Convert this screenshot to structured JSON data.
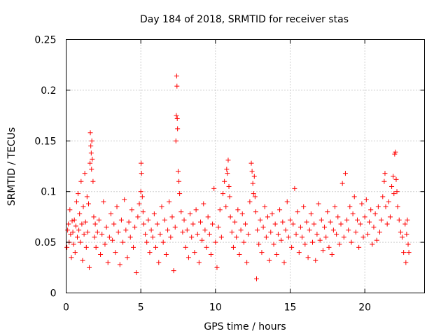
{
  "chart_data": {
    "type": "scatter",
    "title": "Day 184 of 2018, SRMTID for receiver stas",
    "xlabel": "GPS time / hours",
    "ylabel": "SRMTID / TECUs",
    "xlim": [
      0,
      24
    ],
    "ylim": [
      0,
      0.25
    ],
    "xticks": [
      0,
      5,
      10,
      15,
      20
    ],
    "xtick_labels": [
      "0",
      "5",
      "10",
      "15",
      "20"
    ],
    "yticks": [
      0,
      0.05,
      0.1,
      0.15,
      0.2,
      0.25
    ],
    "ytick_labels": [
      "0",
      "0.05",
      "0.1",
      "0.15",
      "0.2",
      "0.25"
    ],
    "grid": true,
    "marker": "+",
    "color": "#ff0000",
    "series": [
      {
        "name": "stas",
        "points": [
          [
            0.05,
            0.045
          ],
          [
            0.1,
            0.062
          ],
          [
            0.15,
            0.068
          ],
          [
            0.2,
            0.05
          ],
          [
            0.25,
            0.082
          ],
          [
            0.3,
            0.058
          ],
          [
            0.35,
            0.035
          ],
          [
            0.4,
            0.071
          ],
          [
            0.45,
            0.06
          ],
          [
            0.5,
            0.048
          ],
          [
            0.55,
            0.072
          ],
          [
            0.6,
            0.04
          ],
          [
            0.65,
            0.066
          ],
          [
            0.7,
            0.09
          ],
          [
            0.75,
            0.055
          ],
          [
            0.8,
            0.098
          ],
          [
            0.85,
            0.062
          ],
          [
            0.9,
            0.078
          ],
          [
            0.95,
            0.05
          ],
          [
            1.0,
            0.11
          ],
          [
            1.05,
            0.068
          ],
          [
            1.1,
            0.032
          ],
          [
            1.15,
            0.085
          ],
          [
            1.2,
            0.058
          ],
          [
            1.25,
            0.118
          ],
          [
            1.3,
            0.07
          ],
          [
            1.35,
            0.045
          ],
          [
            1.4,
            0.095
          ],
          [
            1.45,
            0.06
          ],
          [
            1.5,
            0.088
          ],
          [
            1.55,
            0.025
          ],
          [
            1.6,
            0.128
          ],
          [
            1.62,
            0.158
          ],
          [
            1.65,
            0.145
          ],
          [
            1.68,
            0.138
          ],
          [
            1.7,
            0.122
          ],
          [
            1.72,
            0.15
          ],
          [
            1.75,
            0.132
          ],
          [
            1.8,
            0.11
          ],
          [
            1.85,
            0.075
          ],
          [
            1.9,
            0.055
          ],
          [
            1.95,
            0.068
          ],
          [
            2.0,
            0.045
          ],
          [
            2.1,
            0.06
          ],
          [
            2.2,
            0.072
          ],
          [
            2.3,
            0.038
          ],
          [
            2.4,
            0.058
          ],
          [
            2.5,
            0.09
          ],
          [
            2.6,
            0.048
          ],
          [
            2.7,
            0.065
          ],
          [
            2.8,
            0.03
          ],
          [
            2.9,
            0.055
          ],
          [
            3.0,
            0.078
          ],
          [
            3.1,
            0.052
          ],
          [
            3.2,
            0.068
          ],
          [
            3.3,
            0.04
          ],
          [
            3.4,
            0.085
          ],
          [
            3.5,
            0.06
          ],
          [
            3.6,
            0.028
          ],
          [
            3.7,
            0.072
          ],
          [
            3.8,
            0.05
          ],
          [
            3.9,
            0.092
          ],
          [
            4.0,
            0.062
          ],
          [
            4.1,
            0.035
          ],
          [
            4.2,
            0.07
          ],
          [
            4.3,
            0.055
          ],
          [
            4.4,
            0.082
          ],
          [
            4.5,
            0.045
          ],
          [
            4.6,
            0.065
          ],
          [
            4.7,
            0.02
          ],
          [
            4.8,
            0.075
          ],
          [
            4.9,
            0.088
          ],
          [
            5.0,
            0.1
          ],
          [
            5.02,
            0.128
          ],
          [
            5.05,
            0.118
          ],
          [
            5.1,
            0.095
          ],
          [
            5.15,
            0.08
          ],
          [
            5.2,
            0.068
          ],
          [
            5.3,
            0.058
          ],
          [
            5.4,
            0.05
          ],
          [
            5.5,
            0.072
          ],
          [
            5.6,
            0.04
          ],
          [
            5.7,
            0.062
          ],
          [
            5.8,
            0.055
          ],
          [
            5.9,
            0.078
          ],
          [
            6.0,
            0.045
          ],
          [
            6.1,
            0.068
          ],
          [
            6.2,
            0.03
          ],
          [
            6.3,
            0.058
          ],
          [
            6.4,
            0.085
          ],
          [
            6.5,
            0.05
          ],
          [
            6.6,
            0.072
          ],
          [
            6.7,
            0.038
          ],
          [
            6.8,
            0.062
          ],
          [
            6.9,
            0.09
          ],
          [
            7.0,
            0.055
          ],
          [
            7.1,
            0.075
          ],
          [
            7.2,
            0.022
          ],
          [
            7.3,
            0.065
          ],
          [
            7.35,
            0.15
          ],
          [
            7.38,
            0.175
          ],
          [
            7.4,
            0.214
          ],
          [
            7.42,
            0.204
          ],
          [
            7.44,
            0.172
          ],
          [
            7.46,
            0.162
          ],
          [
            7.5,
            0.12
          ],
          [
            7.55,
            0.11
          ],
          [
            7.6,
            0.098
          ],
          [
            7.7,
            0.08
          ],
          [
            7.8,
            0.06
          ],
          [
            7.9,
            0.072
          ],
          [
            8.0,
            0.045
          ],
          [
            8.1,
            0.062
          ],
          [
            8.2,
            0.035
          ],
          [
            8.3,
            0.078
          ],
          [
            8.4,
            0.055
          ],
          [
            8.5,
            0.068
          ],
          [
            8.6,
            0.04
          ],
          [
            8.7,
            0.082
          ],
          [
            8.8,
            0.058
          ],
          [
            8.9,
            0.03
          ],
          [
            9.0,
            0.07
          ],
          [
            9.1,
            0.052
          ],
          [
            9.2,
            0.088
          ],
          [
            9.3,
            0.062
          ],
          [
            9.4,
            0.045
          ],
          [
            9.5,
            0.075
          ],
          [
            9.6,
            0.058
          ],
          [
            9.7,
            0.038
          ],
          [
            9.8,
            0.068
          ],
          [
            9.9,
            0.103
          ],
          [
            10.0,
            0.05
          ],
          [
            10.1,
            0.025
          ],
          [
            10.2,
            0.065
          ],
          [
            10.3,
            0.082
          ],
          [
            10.4,
            0.055
          ],
          [
            10.5,
            0.098
          ],
          [
            10.6,
            0.11
          ],
          [
            10.7,
            0.085
          ],
          [
            10.75,
            0.122
          ],
          [
            10.8,
            0.118
          ],
          [
            10.85,
            0.131
          ],
          [
            10.9,
            0.105
          ],
          [
            10.95,
            0.095
          ],
          [
            11.0,
            0.075
          ],
          [
            11.1,
            0.06
          ],
          [
            11.2,
            0.045
          ],
          [
            11.3,
            0.07
          ],
          [
            11.4,
            0.055
          ],
          [
            11.5,
            0.082
          ],
          [
            11.6,
            0.038
          ],
          [
            11.7,
            0.062
          ],
          [
            11.8,
            0.078
          ],
          [
            11.9,
            0.05
          ],
          [
            12.0,
            0.068
          ],
          [
            12.1,
            0.03
          ],
          [
            12.2,
            0.058
          ],
          [
            12.3,
            0.09
          ],
          [
            12.4,
            0.128
          ],
          [
            12.45,
            0.12
          ],
          [
            12.5,
            0.108
          ],
          [
            12.55,
            0.098
          ],
          [
            12.6,
            0.115
          ],
          [
            12.65,
            0.095
          ],
          [
            12.7,
            0.08
          ],
          [
            12.75,
            0.014
          ],
          [
            12.8,
            0.062
          ],
          [
            12.9,
            0.048
          ],
          [
            13.0,
            0.072
          ],
          [
            13.1,
            0.04
          ],
          [
            13.2,
            0.065
          ],
          [
            13.3,
            0.085
          ],
          [
            13.4,
            0.055
          ],
          [
            13.5,
            0.075
          ],
          [
            13.6,
            0.032
          ],
          [
            13.7,
            0.06
          ],
          [
            13.8,
            0.078
          ],
          [
            13.9,
            0.048
          ],
          [
            14.0,
            0.068
          ],
          [
            14.1,
            0.038
          ],
          [
            14.2,
            0.058
          ],
          [
            14.3,
            0.082
          ],
          [
            14.4,
            0.052
          ],
          [
            14.5,
            0.07
          ],
          [
            14.6,
            0.03
          ],
          [
            14.7,
            0.062
          ],
          [
            14.8,
            0.09
          ],
          [
            14.9,
            0.055
          ],
          [
            15.0,
            0.072
          ],
          [
            15.1,
            0.045
          ],
          [
            15.2,
            0.068
          ],
          [
            15.3,
            0.103
          ],
          [
            15.4,
            0.058
          ],
          [
            15.5,
            0.08
          ],
          [
            15.6,
            0.04
          ],
          [
            15.7,
            0.065
          ],
          [
            15.8,
            0.055
          ],
          [
            15.9,
            0.085
          ],
          [
            16.0,
            0.048
          ],
          [
            16.1,
            0.07
          ],
          [
            16.2,
            0.035
          ],
          [
            16.3,
            0.062
          ],
          [
            16.4,
            0.078
          ],
          [
            16.5,
            0.05
          ],
          [
            16.6,
            0.068
          ],
          [
            16.7,
            0.032
          ],
          [
            16.8,
            0.058
          ],
          [
            16.9,
            0.088
          ],
          [
            17.0,
            0.052
          ],
          [
            17.1,
            0.072
          ],
          [
            17.2,
            0.042
          ],
          [
            17.3,
            0.065
          ],
          [
            17.4,
            0.055
          ],
          [
            17.5,
            0.08
          ],
          [
            17.6,
            0.045
          ],
          [
            17.7,
            0.07
          ],
          [
            17.8,
            0.038
          ],
          [
            17.9,
            0.062
          ],
          [
            18.0,
            0.085
          ],
          [
            18.1,
            0.058
          ],
          [
            18.2,
            0.075
          ],
          [
            18.3,
            0.048
          ],
          [
            18.4,
            0.068
          ],
          [
            18.5,
            0.108
          ],
          [
            18.6,
            0.055
          ],
          [
            18.7,
            0.118
          ],
          [
            18.8,
            0.072
          ],
          [
            18.9,
            0.062
          ],
          [
            19.0,
            0.085
          ],
          [
            19.1,
            0.05
          ],
          [
            19.2,
            0.078
          ],
          [
            19.3,
            0.095
          ],
          [
            19.4,
            0.06
          ],
          [
            19.5,
            0.072
          ],
          [
            19.6,
            0.045
          ],
          [
            19.7,
            0.068
          ],
          [
            19.8,
            0.088
          ],
          [
            19.9,
            0.055
          ],
          [
            20.0,
            0.075
          ],
          [
            20.1,
            0.092
          ],
          [
            20.2,
            0.058
          ],
          [
            20.3,
            0.07
          ],
          [
            20.4,
            0.082
          ],
          [
            20.5,
            0.048
          ],
          [
            20.6,
            0.065
          ],
          [
            20.7,
            0.078
          ],
          [
            20.8,
            0.052
          ],
          [
            20.9,
            0.085
          ],
          [
            21.0,
            0.06
          ],
          [
            21.1,
            0.072
          ],
          [
            21.2,
            0.095
          ],
          [
            21.3,
            0.11
          ],
          [
            21.35,
            0.118
          ],
          [
            21.4,
            0.085
          ],
          [
            21.5,
            0.068
          ],
          [
            21.6,
            0.09
          ],
          [
            21.7,
            0.075
          ],
          [
            21.8,
            0.105
          ],
          [
            21.9,
            0.115
          ],
          [
            21.95,
            0.098
          ],
          [
            22.0,
            0.137
          ],
          [
            22.05,
            0.139
          ],
          [
            22.1,
            0.112
          ],
          [
            22.15,
            0.1
          ],
          [
            22.2,
            0.085
          ],
          [
            22.3,
            0.072
          ],
          [
            22.4,
            0.06
          ],
          [
            22.5,
            0.055
          ],
          [
            22.6,
            0.04
          ],
          [
            22.7,
            0.068
          ],
          [
            22.75,
            0.03
          ],
          [
            22.8,
            0.058
          ],
          [
            22.85,
            0.072
          ],
          [
            22.9,
            0.048
          ],
          [
            22.95,
            0.04
          ]
        ]
      }
    ]
  }
}
